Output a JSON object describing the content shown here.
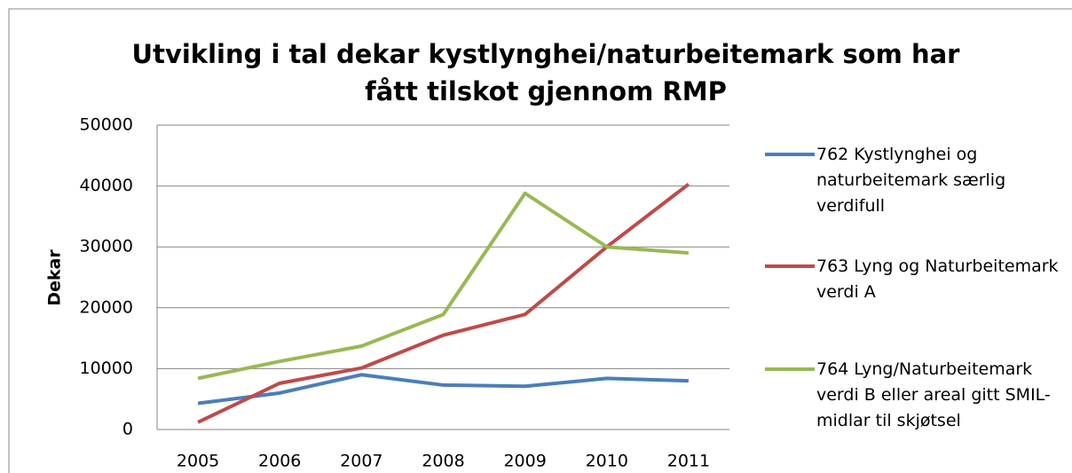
{
  "chart_data": {
    "type": "line",
    "title": "Utvikling i tal dekar kystlynghei/naturbeitemark som har fått tilskot gjennom RMP",
    "ylabel": "Dekar",
    "categories": [
      "2005",
      "2006",
      "2007",
      "2008",
      "2009",
      "2010",
      "2011"
    ],
    "series": [
      {
        "name": "762 Kystlynghei og naturbeitemark særlig verdifull",
        "color": "#4a7ebb",
        "values": [
          4300,
          6000,
          9000,
          7300,
          7100,
          8400,
          8000
        ]
      },
      {
        "name": "763 Lyng og Naturbeitemark verdi A",
        "color": "#be4b48",
        "values": [
          1200,
          7600,
          10100,
          15500,
          18900,
          30000,
          40300
        ]
      },
      {
        "name": "764 Lyng/Naturbeitemark verdi B eller areal gitt SMIL-midlar til skjøtsel",
        "color": "#98b954",
        "values": [
          8400,
          11200,
          13700,
          18900,
          38800,
          30000,
          29000
        ]
      }
    ],
    "ylim": [
      0,
      50000
    ],
    "yticks": [
      0,
      10000,
      20000,
      30000,
      40000,
      50000
    ],
    "grid": true,
    "legend": "right"
  }
}
